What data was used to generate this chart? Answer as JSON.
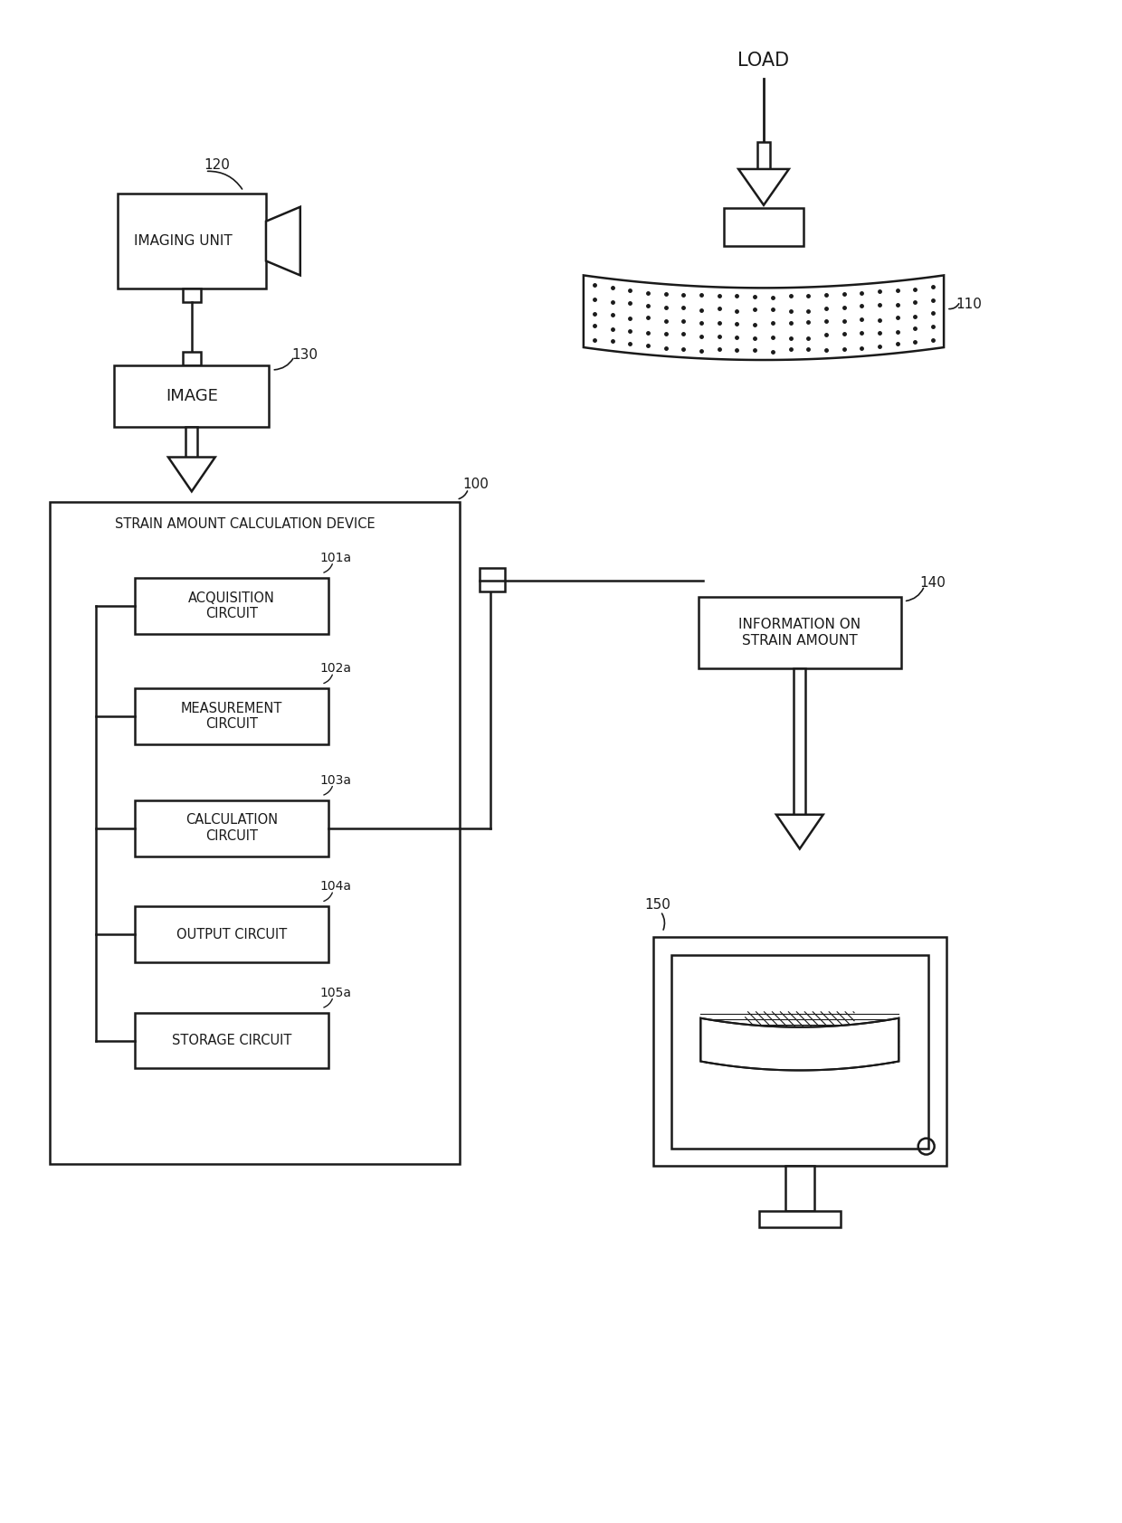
{
  "bg_color": "#ffffff",
  "line_color": "#1a1a1a",
  "text_color": "#1a1a1a",
  "fig_width": 12.4,
  "fig_height": 16.84,
  "load_label": "LOAD",
  "imaging_unit_label": "IMAGING UNIT",
  "image_label": "IMAGE",
  "device_label": "STRAIN AMOUNT CALCULATION DEVICE",
  "circuits": [
    "ACQUISITION\nCIRCUIT",
    "MEASUREMENT\nCIRCUIT",
    "CALCULATION\nCIRCUIT",
    "OUTPUT CIRCUIT",
    "STORAGE CIRCUIT"
  ],
  "circuit_refs": [
    "101a",
    "102a",
    "103a",
    "104a",
    "105a"
  ],
  "info_label": "INFORMATION ON\nSTRAIN AMOUNT",
  "ref_110": "110",
  "ref_120": "120",
  "ref_130": "130",
  "ref_100": "100",
  "ref_140": "140",
  "ref_150": "150"
}
